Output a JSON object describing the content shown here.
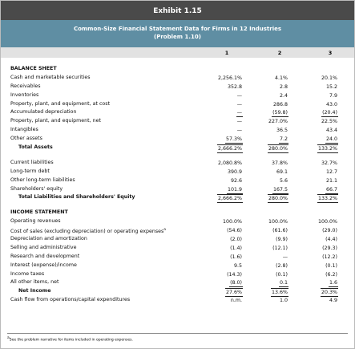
{
  "header": {
    "exhibit": "Exhibit 1.15",
    "title": "Common-Size Financial Statement Data for Firms in 12 Industries",
    "subtitle": "(Problem 1.10)",
    "columns": [
      "1",
      "2",
      "3"
    ]
  },
  "sections": [
    {
      "heading": "BALANCE SHEET",
      "rows": [
        {
          "label": "Cash and marketable securities",
          "values": [
            "2,256.1%",
            "4.1%",
            "20.1%"
          ]
        },
        {
          "label": "Receivables",
          "values": [
            "352.8",
            "2.8",
            "15.2"
          ]
        },
        {
          "label": "Inventories",
          "values": [
            "—",
            "2.4",
            "7.9"
          ]
        },
        {
          "label": "Property, plant, and equipment, at cost",
          "values": [
            "—",
            "286.8",
            "43.0"
          ]
        },
        {
          "label": "Accumulated depreciation",
          "values": [
            "—",
            "(59.8)",
            "(20.4)"
          ]
        },
        {
          "label": "Property, plant, and equipment, net",
          "values": [
            "—",
            "227.0%",
            "22.5%"
          ]
        },
        {
          "label": "Intangibles",
          "values": [
            "—",
            "36.5",
            "43.4"
          ]
        },
        {
          "label": "Other assets",
          "values": [
            "57.3%",
            "7.2",
            "24.0"
          ]
        },
        {
          "label": "Total Assets",
          "values": [
            "2,666.2%",
            "280.0%",
            "133.2%"
          ]
        }
      ]
    },
    {
      "rows": [
        {
          "label": "Current liabilities",
          "values": [
            "2,080.8%",
            "37.8%",
            "32.7%"
          ]
        },
        {
          "label": "Long-term debt",
          "values": [
            "390.9",
            "69.1",
            "12.7"
          ]
        },
        {
          "label": "Other long-term liabilities",
          "values": [
            "92.6",
            "5.6",
            "21.1"
          ]
        },
        {
          "label": "Shareholders' equity",
          "values": [
            "101.9",
            "167.5",
            "66.7"
          ]
        },
        {
          "label": "Total Liabilities and Shareholders' Equity",
          "values": [
            "2,666.2%",
            "280.0%",
            "133.2%"
          ]
        }
      ]
    },
    {
      "heading": "INCOME STATEMENT",
      "rows": [
        {
          "label": "Operating revenues",
          "values": [
            "100.0%",
            "100.0%",
            "100.0%"
          ]
        },
        {
          "label": "Cost of sales (excluding depreciation) or operating expenses",
          "note": "a",
          "values": [
            "(54.6)",
            "(61.6)",
            "(29.0)"
          ]
        },
        {
          "label": "Depreciation and amortization",
          "values": [
            "(2.0)",
            "(9.9)",
            "(4.4)"
          ]
        },
        {
          "label": "Selling and administrative",
          "values": [
            "(1.4)",
            "(12.1)",
            "(29.3)"
          ]
        },
        {
          "label": "Research and development",
          "values": [
            "(1.6)",
            "—",
            "(12.2)"
          ]
        },
        {
          "label": "Interest (expense)/income",
          "values": [
            "9.5",
            "(2.8)",
            "(0.1)"
          ]
        },
        {
          "label": "Income taxes",
          "values": [
            "(14.3)",
            "(0.1)",
            "(6.2)"
          ]
        },
        {
          "label": "All other items, net",
          "values": [
            "(8.0)",
            "0.1",
            "1.6"
          ]
        },
        {
          "label": "Net Income",
          "values": [
            "27.6%",
            "13.6%",
            "20.3%"
          ]
        },
        {
          "label": "Cash flow from operations/capital expenditures",
          "values": [
            "n.m.",
            "1.0",
            "4.9"
          ]
        }
      ]
    }
  ],
  "footnote": {
    "mark": "a",
    "text": "See the problem narrative for items included in operating expenses."
  }
}
